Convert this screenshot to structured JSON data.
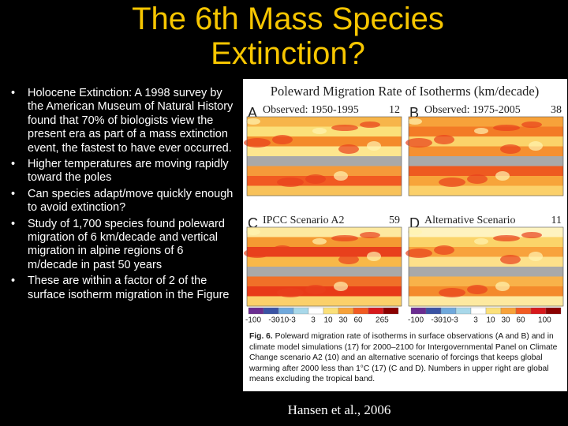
{
  "header": {
    "title": "The 6th Mass Species Extinction?"
  },
  "bullets": [
    "Holocene Extinction: A 1998 survey by the American Museum of Natural History found that 70% of biologists view the present era as part of a mass extinction event, the fastest to have ever occurred.",
    "Higher temperatures are moving rapidly toward the poles",
    "Can species adapt/move quickly enough to avoid extinction?",
    "Study of 1,700 species found poleward migration of 6 km/decade and vertical migration in alpine regions of 6 m/decade in past 50 years",
    "These are within a factor of 2 of the surface isotherm migration in the Figure"
  ],
  "figure": {
    "title": "Poleward Migration Rate of Isotherms (km/decade)",
    "panels": [
      {
        "letter": "A",
        "label": "Observed: 1950-1995",
        "value": 12
      },
      {
        "letter": "B",
        "label": "Observed: 1975-2005",
        "value": 38
      },
      {
        "letter": "C",
        "label": "IPCC Scenario A2",
        "value": 59
      },
      {
        "letter": "D",
        "label": "Alternative Scenario",
        "value": 11
      }
    ],
    "colorbars": [
      [
        "-100",
        "-30",
        "-10",
        "-3",
        "3",
        "10",
        "30",
        "60",
        "265"
      ],
      [
        "-100",
        "-30",
        "-10",
        "-3",
        "3",
        "10",
        "30",
        "60",
        "100"
      ]
    ],
    "caption": {
      "label": "Fig. 6.",
      "text": "Poleward migration rate of isotherms in surface observations (A and B) and in climate model simulations (17) for 2000–2100 for Intergovernmental Panel on Climate Change scenario A2 (10) and an alternative scenario of forcings that keeps global warming after 2000 less than 1°C (17) (C and D). Numbers in upper right are global means excluding the tropical band."
    }
  },
  "credit": "Hansen et al., 2006"
}
